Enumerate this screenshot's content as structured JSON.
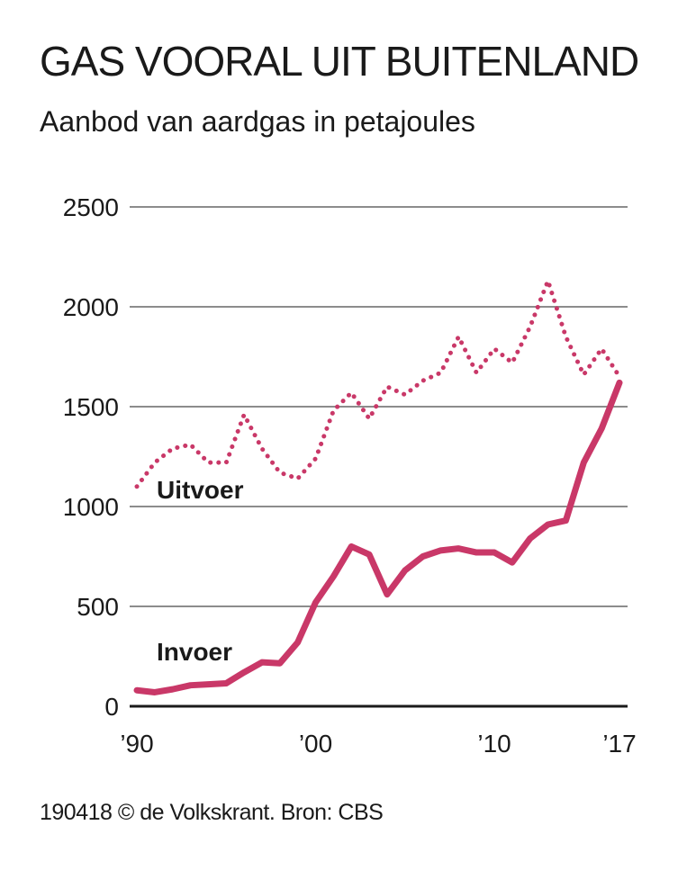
{
  "header": {
    "title": "GAS VOORAL UIT BUITENLAND",
    "subtitle": "Aanbod van aardgas in petajoules"
  },
  "footer": {
    "source": "190418 © de Volkskrant. Bron: CBS"
  },
  "chart_data": {
    "type": "line",
    "title": "GAS VOORAL UIT BUITENLAND",
    "subtitle": "Aanbod van aardgas in petajoules",
    "xlabel": "",
    "ylabel": "",
    "xlim": [
      1990,
      2017
    ],
    "ylim": [
      0,
      2500
    ],
    "yticks": [
      0,
      500,
      1000,
      1500,
      2000,
      2500
    ],
    "xticks": [
      {
        "value": 1990,
        "label": "’90"
      },
      {
        "value": 2000,
        "label": "’00"
      },
      {
        "value": 2010,
        "label": "’10"
      },
      {
        "value": 2017,
        "label": "’17"
      }
    ],
    "grid": "horizontal",
    "legend": "inline labels",
    "x": [
      1990,
      1991,
      1992,
      1993,
      1994,
      1995,
      1996,
      1997,
      1998,
      1999,
      2000,
      2001,
      2002,
      2003,
      2004,
      2005,
      2006,
      2007,
      2008,
      2009,
      2010,
      2011,
      2012,
      2013,
      2014,
      2015,
      2016,
      2017
    ],
    "series": [
      {
        "name": "Uitvoer",
        "style": "dotted",
        "color": "#c93868",
        "values": [
          1100,
          1220,
          1290,
          1310,
          1220,
          1220,
          1460,
          1290,
          1170,
          1140,
          1240,
          1480,
          1570,
          1440,
          1600,
          1560,
          1630,
          1670,
          1850,
          1670,
          1790,
          1720,
          1900,
          2130,
          1850,
          1660,
          1790,
          1650
        ]
      },
      {
        "name": "Invoer",
        "style": "solid",
        "color": "#c93868",
        "values": [
          80,
          70,
          85,
          105,
          110,
          115,
          170,
          220,
          215,
          320,
          520,
          650,
          800,
          760,
          560,
          680,
          750,
          780,
          790,
          770,
          770,
          720,
          840,
          910,
          930,
          1220,
          1390,
          1620
        ]
      }
    ]
  }
}
